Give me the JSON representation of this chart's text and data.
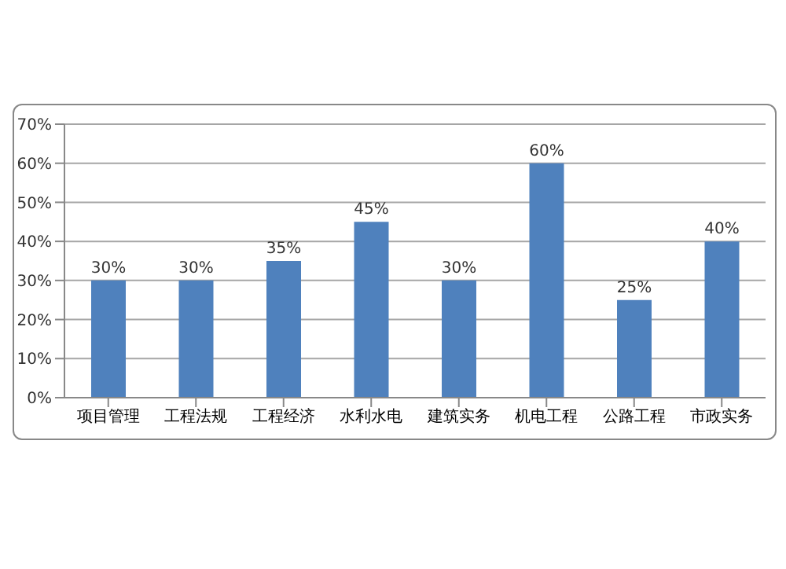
{
  "chart_data": {
    "type": "bar",
    "categories": [
      "项目管理",
      "工程法规",
      "工程经济",
      "水利水电",
      "建筑实务",
      "机电工程",
      "公路工程",
      "市政实务"
    ],
    "values": [
      30,
      30,
      35,
      45,
      30,
      60,
      25,
      40
    ],
    "value_labels": [
      "30%",
      "30%",
      "35%",
      "45%",
      "30%",
      "60%",
      "25%",
      "40%"
    ],
    "color": "#4f81bd",
    "ylim": [
      0,
      70
    ],
    "yticks": [
      {
        "value": 0,
        "label": "0%"
      },
      {
        "value": 10,
        "label": "10%"
      },
      {
        "value": 20,
        "label": "20%"
      },
      {
        "value": 30,
        "label": "30%"
      },
      {
        "value": 40,
        "label": "40%"
      },
      {
        "value": 50,
        "label": "50%"
      },
      {
        "value": 60,
        "label": "60%"
      },
      {
        "value": 70,
        "label": "70%"
      }
    ],
    "grid": "y"
  }
}
